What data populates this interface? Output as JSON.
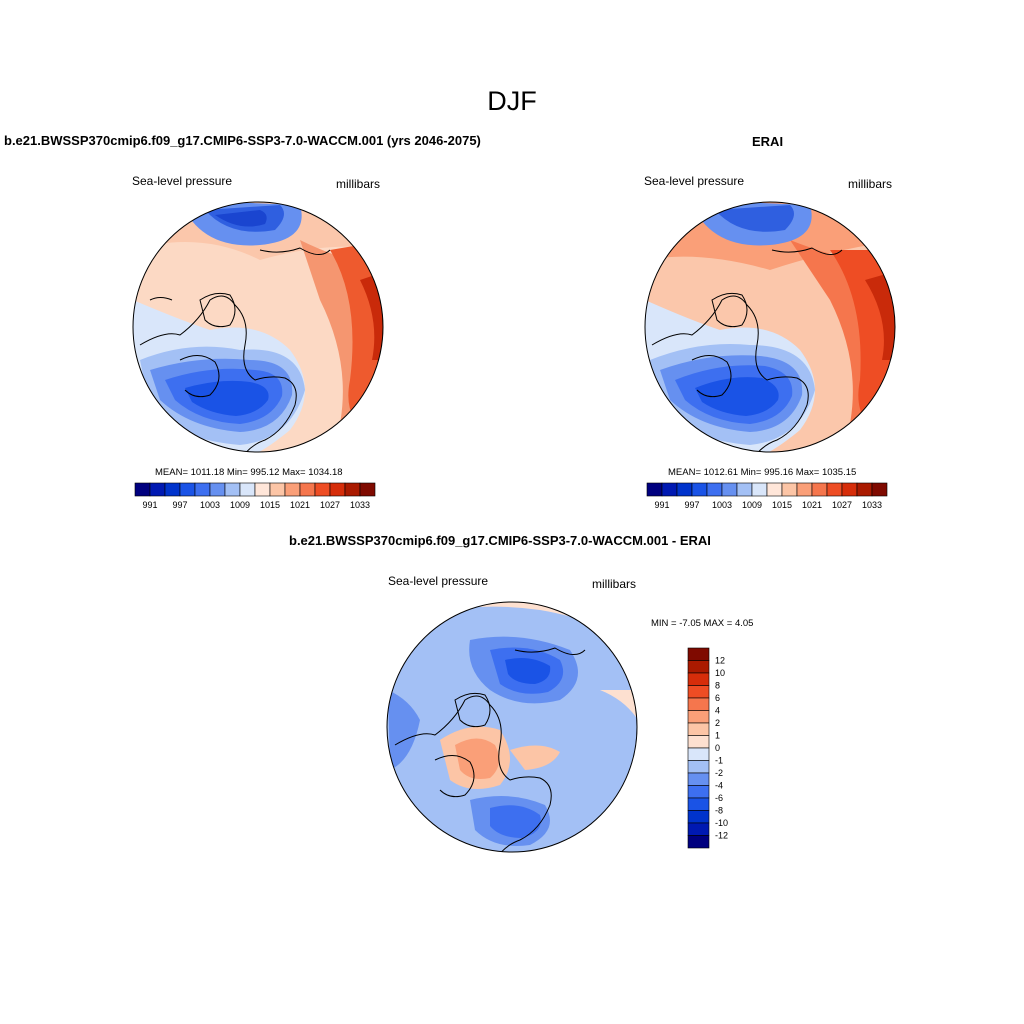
{
  "title": "DJF",
  "colors": {
    "abs_scale": [
      "#00007f",
      "#0019b2",
      "#0033cc",
      "#1a53e6",
      "#3d6ff0",
      "#6690f0",
      "#a3c0f5",
      "#d9e6fa",
      "#ffe6d9",
      "#fcc5a6",
      "#fa9f78",
      "#f5764d",
      "#ee4d24",
      "#d62d0a",
      "#aa1a00",
      "#7f0a00"
    ],
    "diff_scale": [
      "#00007f",
      "#0019b2",
      "#0033cc",
      "#1a53e6",
      "#3d6ff0",
      "#6690f0",
      "#a3c0f5",
      "#d9e6fa",
      "#fde0d0",
      "#fcc5a6",
      "#fa9f78",
      "#f5764d",
      "#ee4d24",
      "#d62d0a",
      "#aa1a00",
      "#7f0a00"
    ]
  },
  "panels": {
    "model": {
      "title": "b.e21.BWSSP370cmip6.f09_g17.CMIP6-SSP3-7.0-WACCM.001 (yrs 2046-2075)",
      "left_label": "Sea-level pressure",
      "right_label": "millibars",
      "stats": "MEAN= 1011.18   Min= 995.12   Max= 1034.18"
    },
    "obs": {
      "title": "ERAI",
      "left_label": "Sea-level pressure",
      "right_label": "millibars",
      "stats": "MEAN= 1012.61   Min= 995.16   Max= 1035.15"
    },
    "diff": {
      "title": "b.e21.BWSSP370cmip6.f09_g17.CMIP6-SSP3-7.0-WACCM.001 - ERAI",
      "left_label": "Sea-level pressure",
      "right_label": "millibars",
      "stats": "MIN =  -7.05 MAX =   4.05"
    }
  },
  "colorbar_abs": {
    "labels": [
      "991",
      "997",
      "1003",
      "1009",
      "1015",
      "1021",
      "1027",
      "1033"
    ]
  },
  "colorbar_diff": {
    "labels": [
      "12",
      "10",
      "8",
      "6",
      "4",
      "2",
      "1",
      "0",
      "-1",
      "-2",
      "-4",
      "-6",
      "-8",
      "-10",
      "-12"
    ]
  }
}
